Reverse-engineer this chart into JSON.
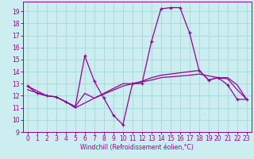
{
  "bg_color": "#cceef0",
  "grid_color": "#aadddf",
  "line_color": "#990099",
  "xlim": [
    -0.5,
    23.5
  ],
  "ylim": [
    9.0,
    19.8
  ],
  "xticks": [
    0,
    1,
    2,
    3,
    4,
    5,
    6,
    7,
    8,
    9,
    10,
    11,
    12,
    13,
    14,
    15,
    16,
    17,
    18,
    19,
    20,
    21,
    22,
    23
  ],
  "yticks": [
    9,
    10,
    11,
    12,
    13,
    14,
    15,
    16,
    17,
    18,
    19
  ],
  "xlabel": "Windchill (Refroidissement éolien,°C)",
  "series_main_x": [
    0,
    1,
    2,
    3,
    4,
    5,
    6,
    7,
    8,
    9,
    10,
    11,
    12,
    13,
    14,
    15,
    16,
    17,
    18,
    19,
    20,
    21,
    22,
    23
  ],
  "series_main_y": [
    12.8,
    12.2,
    12.0,
    11.9,
    11.5,
    11.1,
    15.3,
    13.2,
    11.8,
    10.4,
    9.6,
    13.0,
    13.0,
    16.5,
    19.2,
    19.3,
    19.3,
    17.2,
    14.1,
    13.3,
    13.5,
    12.9,
    11.7,
    11.7
  ],
  "series_smooth1_x": [
    0,
    2,
    3,
    4,
    5,
    6,
    7,
    10,
    11,
    12,
    13,
    14,
    17,
    18,
    19,
    20,
    21,
    22,
    23
  ],
  "series_smooth1_y": [
    12.8,
    12.0,
    11.9,
    11.5,
    11.1,
    12.2,
    11.8,
    13.0,
    13.0,
    13.2,
    13.5,
    13.7,
    14.0,
    14.1,
    13.3,
    13.5,
    13.5,
    12.9,
    11.7
  ],
  "series_smooth2_x": [
    0,
    2,
    3,
    4,
    5,
    7,
    10,
    11,
    13,
    14,
    17,
    18,
    20,
    21,
    22,
    23
  ],
  "series_smooth2_y": [
    12.5,
    12.0,
    11.9,
    11.5,
    11.0,
    11.8,
    12.8,
    13.0,
    13.3,
    13.5,
    13.7,
    13.8,
    13.5,
    13.4,
    12.5,
    11.7
  ],
  "tick_fontsize": 5.5,
  "xlabel_fontsize": 5.5
}
